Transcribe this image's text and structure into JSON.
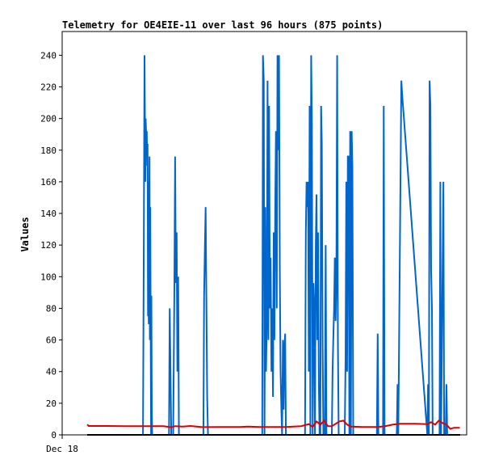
{
  "chart_data": {
    "type": "line",
    "title": "Telemetry for OE4EIE-11 over last 96 hours (875 points)",
    "xlabel": "",
    "ylabel": "Values",
    "x_tick_labels": [
      "Dec 18"
    ],
    "y_ticks": [
      0,
      20,
      40,
      60,
      80,
      100,
      120,
      140,
      160,
      180,
      200,
      220,
      240
    ],
    "ylim": [
      0,
      255
    ],
    "xlim": [
      0,
      100
    ],
    "grid": false,
    "legend": "none",
    "series": [
      {
        "color": "#0066cc",
        "points": [
          [
            14.6,
            0
          ],
          [
            14.8,
            120
          ],
          [
            15.0,
            240
          ],
          [
            15.2,
            160
          ],
          [
            15.3,
            200
          ],
          [
            15.5,
            185
          ],
          [
            15.6,
            192
          ],
          [
            15.7,
            170
          ],
          [
            15.8,
            184
          ],
          [
            15.9,
            75
          ],
          [
            16.0,
            160
          ],
          [
            16.1,
            70
          ],
          [
            16.3,
            176
          ],
          [
            16.4,
            60
          ],
          [
            16.5,
            144
          ],
          [
            16.6,
            74
          ],
          [
            16.7,
            0
          ],
          [
            16.8,
            88
          ],
          [
            16.9,
            16
          ],
          [
            17.0,
            0
          ],
          [
            21.4,
            0
          ],
          [
            21.6,
            80
          ],
          [
            21.8,
            40
          ],
          [
            22.0,
            0
          ],
          [
            22.5,
            0
          ],
          [
            22.8,
            88
          ],
          [
            23.0,
            176
          ],
          [
            23.2,
            96
          ],
          [
            23.4,
            128
          ],
          [
            23.6,
            40
          ],
          [
            23.8,
            100
          ],
          [
            24.0,
            0
          ],
          [
            30.4,
            0
          ],
          [
            30.6,
            88
          ],
          [
            30.8,
            120
          ],
          [
            31.0,
            144
          ],
          [
            31.2,
            80
          ],
          [
            31.4,
            24
          ],
          [
            31.6,
            0
          ],
          [
            45.8,
            0
          ],
          [
            46.0,
            240
          ],
          [
            46.2,
            224
          ],
          [
            46.4,
            0
          ],
          [
            46.6,
            144
          ],
          [
            46.8,
            40
          ],
          [
            47.0,
            72
          ],
          [
            47.2,
            224
          ],
          [
            47.4,
            60
          ],
          [
            47.6,
            208
          ],
          [
            47.8,
            80
          ],
          [
            48.0,
            112
          ],
          [
            48.2,
            40
          ],
          [
            48.4,
            80
          ],
          [
            48.6,
            24
          ],
          [
            48.8,
            128
          ],
          [
            49.0,
            60
          ],
          [
            49.2,
            144
          ],
          [
            49.4,
            192
          ],
          [
            49.6,
            80
          ],
          [
            49.8,
            240
          ],
          [
            50.0,
            180
          ],
          [
            50.2,
            240
          ],
          [
            50.4,
            100
          ],
          [
            50.6,
            40
          ],
          [
            50.8,
            16
          ],
          [
            51.0,
            0
          ],
          [
            51.2,
            60
          ],
          [
            51.4,
            16
          ],
          [
            51.6,
            56
          ],
          [
            51.8,
            64
          ],
          [
            52.0,
            0
          ],
          [
            57.0,
            0
          ],
          [
            57.2,
            128
          ],
          [
            57.4,
            160
          ],
          [
            57.6,
            144
          ],
          [
            57.8,
            160
          ],
          [
            58.0,
            40
          ],
          [
            58.2,
            208
          ],
          [
            58.4,
            0
          ],
          [
            58.6,
            240
          ],
          [
            58.8,
            200
          ],
          [
            59.0,
            0
          ],
          [
            59.2,
            96
          ],
          [
            59.4,
            80
          ],
          [
            59.6,
            0
          ],
          [
            59.8,
            120
          ],
          [
            60.0,
            152
          ],
          [
            60.2,
            60
          ],
          [
            60.4,
            128
          ],
          [
            60.6,
            32
          ],
          [
            60.8,
            0
          ],
          [
            61.0,
            0
          ],
          [
            61.2,
            208
          ],
          [
            61.4,
            184
          ],
          [
            61.6,
            56
          ],
          [
            61.8,
            0
          ],
          [
            62.0,
            0
          ],
          [
            62.2,
            0
          ],
          [
            62.4,
            120
          ],
          [
            62.6,
            0
          ],
          [
            64.0,
            0
          ],
          [
            64.2,
            40
          ],
          [
            64.4,
            60
          ],
          [
            64.6,
            80
          ],
          [
            64.8,
            112
          ],
          [
            65.0,
            72
          ],
          [
            65.2,
            96
          ],
          [
            65.4,
            240
          ],
          [
            65.6,
            60
          ],
          [
            65.8,
            0
          ],
          [
            67.4,
            0
          ],
          [
            67.6,
            48
          ],
          [
            67.8,
            160
          ],
          [
            68.0,
            40
          ],
          [
            68.2,
            176
          ],
          [
            68.4,
            176
          ],
          [
            68.6,
            0
          ],
          [
            68.8,
            192
          ],
          [
            69.0,
            0
          ],
          [
            69.2,
            192
          ],
          [
            69.4,
            168
          ],
          [
            69.6,
            0
          ],
          [
            75.8,
            0
          ],
          [
            76.0,
            64
          ],
          [
            76.2,
            0
          ],
          [
            77.4,
            0
          ],
          [
            77.6,
            208
          ],
          [
            77.8,
            0
          ],
          [
            81.0,
            0
          ],
          [
            81.2,
            32
          ],
          [
            81.4,
            0
          ],
          [
            82.2,
            224
          ],
          [
            82.4,
            216
          ],
          [
            89.0,
            0
          ],
          [
            89.2,
            32
          ],
          [
            89.4,
            0
          ],
          [
            89.6,
            224
          ],
          [
            89.8,
            208
          ],
          [
            90.0,
            104
          ],
          [
            90.2,
            80
          ],
          [
            90.4,
            0
          ],
          [
            92.2,
            0
          ],
          [
            92.4,
            160
          ],
          [
            92.6,
            0
          ],
          [
            93.2,
            160
          ],
          [
            93.4,
            0
          ],
          [
            93.8,
            0
          ],
          [
            94.0,
            32
          ],
          [
            94.2,
            0
          ]
        ]
      },
      {
        "color": "#dd0000",
        "points": [
          [
            0,
            6.5
          ],
          [
            0.4,
            5.6
          ],
          [
            5,
            5.6
          ],
          [
            10,
            5.5
          ],
          [
            15,
            5.5
          ],
          [
            20,
            5.5
          ],
          [
            22,
            4.8
          ],
          [
            23,
            5.5
          ],
          [
            25,
            5.2
          ],
          [
            27,
            5.6
          ],
          [
            30,
            4.9
          ],
          [
            35,
            5.0
          ],
          [
            40,
            5.0
          ],
          [
            42,
            5.2
          ],
          [
            45,
            5.0
          ],
          [
            48,
            5.0
          ],
          [
            52,
            5.0
          ],
          [
            56,
            5.5
          ],
          [
            58,
            6.8
          ],
          [
            59,
            5.0
          ],
          [
            60,
            8.5
          ],
          [
            61,
            6.5
          ],
          [
            62,
            9.0
          ],
          [
            63,
            5.5
          ],
          [
            64,
            5.5
          ],
          [
            66,
            8.5
          ],
          [
            67,
            9.0
          ],
          [
            68,
            6.5
          ],
          [
            69,
            5.2
          ],
          [
            72,
            5.0
          ],
          [
            76,
            5.0
          ],
          [
            78,
            5.5
          ],
          [
            80,
            6.5
          ],
          [
            82,
            7.0
          ],
          [
            86,
            7.0
          ],
          [
            89,
            6.8
          ],
          [
            90,
            8.0
          ],
          [
            91,
            6.5
          ],
          [
            92,
            9.0
          ],
          [
            93,
            7.5
          ],
          [
            94,
            6.5
          ],
          [
            95,
            3.8
          ],
          [
            96,
            4.5
          ],
          [
            97.5,
            4.5
          ]
        ]
      },
      {
        "color": "#000000",
        "points": [
          [
            0,
            0
          ],
          [
            97.5,
            0
          ],
          [
            97.6,
            0
          ]
        ]
      }
    ]
  }
}
